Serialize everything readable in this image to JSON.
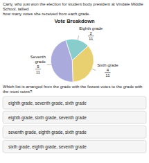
{
  "chart_data": {
    "type": "pie",
    "title": "Vote Breakdown",
    "subtitle": [
      "Carly, who just won the election for student body president at Vindale Middle School, tallied",
      "how many votes she received from each grade."
    ],
    "categories": [
      "Eighth grade",
      "Sixth grade",
      "Seventh\ngrade"
    ],
    "values": [
      2,
      4,
      5
    ],
    "denominators": [
      11,
      11,
      11
    ],
    "colors": [
      "#88CCCC",
      "#E8D070",
      "#AAAADD"
    ],
    "question": "Which list is arranged from the grade with the fewest votes to the grade with the most votes?",
    "options": [
      "eighth grade, seventh grade, sixth grade",
      "eighth grade, sixth grade, seventh grade",
      "seventh grade, eighth grade, sixth grade",
      "sixth grade, eighth grade, seventh grade"
    ]
  }
}
